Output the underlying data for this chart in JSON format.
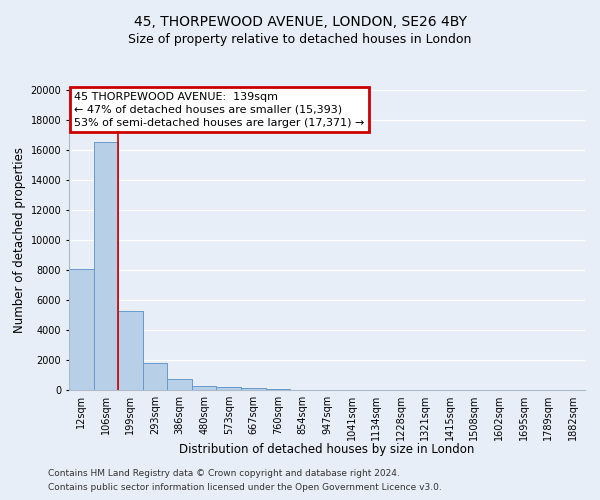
{
  "title": "45, THORPEWOOD AVENUE, LONDON, SE26 4BY",
  "subtitle": "Size of property relative to detached houses in London",
  "xlabel": "Distribution of detached houses by size in London",
  "ylabel": "Number of detached properties",
  "bar_labels": [
    "12sqm",
    "106sqm",
    "199sqm",
    "293sqm",
    "386sqm",
    "480sqm",
    "573sqm",
    "667sqm",
    "760sqm",
    "854sqm",
    "947sqm",
    "1041sqm",
    "1134sqm",
    "1228sqm",
    "1321sqm",
    "1415sqm",
    "1508sqm",
    "1602sqm",
    "1695sqm",
    "1789sqm",
    "1882sqm"
  ],
  "bar_values": [
    8100,
    16500,
    5300,
    1800,
    750,
    280,
    170,
    110,
    100,
    0,
    0,
    0,
    0,
    0,
    0,
    0,
    0,
    0,
    0,
    0,
    0
  ],
  "bar_color": "#b8cfe8",
  "bar_edge_color": "#6699cc",
  "annotation_line1": "45 THORPEWOOD AVENUE:  139sqm",
  "annotation_line2": "← 47% of detached houses are smaller (15,393)",
  "annotation_line3": "53% of semi-detached houses are larger (17,371) →",
  "annotation_box_color": "#ffffff",
  "annotation_box_edge_color": "#cc0000",
  "vline_x": 1.5,
  "vline_color": "#cc0000",
  "ylim": [
    0,
    20000
  ],
  "yticks": [
    0,
    2000,
    4000,
    6000,
    8000,
    10000,
    12000,
    14000,
    16000,
    18000,
    20000
  ],
  "footer_line1": "Contains HM Land Registry data © Crown copyright and database right 2024.",
  "footer_line2": "Contains public sector information licensed under the Open Government Licence v3.0.",
  "background_color": "#e8eef7",
  "grid_color": "#ffffff",
  "title_fontsize": 10,
  "subtitle_fontsize": 9,
  "axis_label_fontsize": 8.5,
  "tick_fontsize": 7,
  "annotation_fontsize": 8,
  "footer_fontsize": 6.5
}
